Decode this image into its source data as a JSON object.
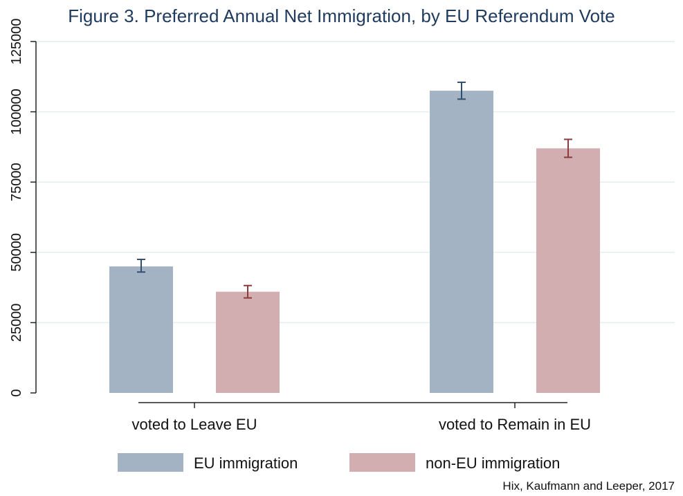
{
  "chart_data": {
    "type": "bar",
    "title": "Figure 3. Preferred Annual Net Immigration, by EU Referendum Vote",
    "categories": [
      "voted to Leave EU",
      "voted to Remain in EU"
    ],
    "series": [
      {
        "name": "EU immigration",
        "values": [
          45000,
          107500
        ],
        "ci": [
          [
            43000,
            47500
          ],
          [
            104500,
            110500
          ]
        ],
        "color": "#a4b3c3",
        "err_color": "#2f4f6f"
      },
      {
        "name": "non-EU immigration",
        "values": [
          36000,
          87000
        ],
        "ci": [
          [
            33800,
            38200
          ],
          [
            83800,
            90200
          ]
        ],
        "color": "#d3aeb1",
        "err_color": "#8b3a3e"
      }
    ],
    "ylim": [
      0,
      125000
    ],
    "yticks": [
      "0",
      "25000",
      "50000",
      "75000",
      "100000",
      "125000"
    ],
    "legend_position": "bottom",
    "grid": true,
    "source": "Hix, Kaufmann and Leeper, 2017"
  }
}
